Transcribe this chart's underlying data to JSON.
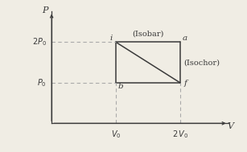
{
  "bg_color": "#f0ede4",
  "line_color": "#3a3a3a",
  "dashed_color": "#aaaaaa",
  "points": {
    "i": [
      1,
      2
    ],
    "a": [
      2,
      2
    ],
    "b": [
      1,
      1
    ],
    "f": [
      2,
      1
    ]
  },
  "xlim": [
    -0.15,
    2.85
  ],
  "ylim": [
    -0.22,
    2.85
  ],
  "xlabel": "V",
  "ylabel": "P",
  "label_isobar": "(Isobar)",
  "label_isochor": "(Isochor)",
  "point_labels": [
    "i",
    "a",
    "b",
    "f"
  ],
  "point_coords": [
    [
      1,
      2
    ],
    [
      2,
      2
    ],
    [
      1,
      1
    ],
    [
      2,
      1
    ]
  ],
  "point_offsets": [
    [
      -0.07,
      0.09
    ],
    [
      0.08,
      0.09
    ],
    [
      0.07,
      -0.1
    ],
    [
      0.08,
      -0.01
    ]
  ],
  "fontsize_labels": 8,
  "fontsize_ticks": 7,
  "fontsize_point": 7.5,
  "fontsize_annot": 7
}
